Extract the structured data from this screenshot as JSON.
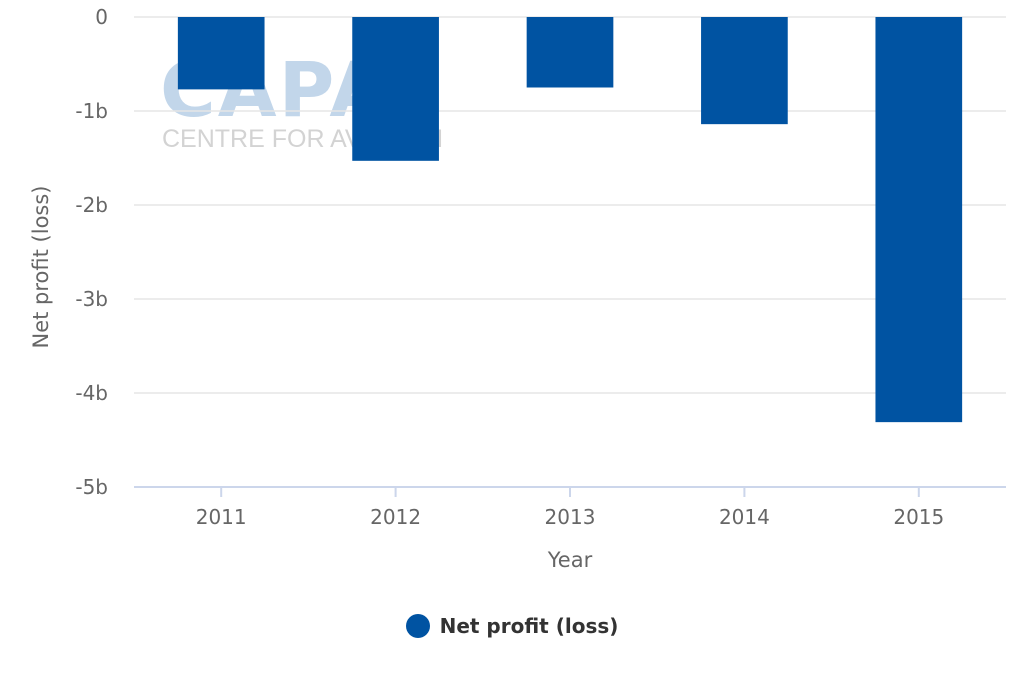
{
  "watermark": {
    "logo_text": "CAPA",
    "sub_text": "CENTRE FOR AVIATION"
  },
  "legend": {
    "label": "Net profit (loss)"
  },
  "colors": {
    "bar": "#0053a2",
    "grid": "#e6e6e6",
    "axis": "#ccd6eb",
    "text": "#666666"
  },
  "chart_data": {
    "type": "bar",
    "xlabel": "Year",
    "ylabel": "Net profit (loss)",
    "categories": [
      "2011",
      "2012",
      "2013",
      "2014",
      "2015"
    ],
    "series": [
      {
        "name": "Net profit (loss)",
        "values": [
          -0.77,
          -1.53,
          -0.75,
          -1.14,
          -4.31
        ]
      }
    ],
    "ylim": [
      -5,
      0
    ],
    "yticks": [
      0,
      -1,
      -2,
      -3,
      -4,
      -5
    ],
    "ytick_labels": [
      "0",
      "-1b",
      "-2b",
      "-3b",
      "-4b",
      "-5b"
    ],
    "grid": true,
    "legend_position": "bottom"
  }
}
